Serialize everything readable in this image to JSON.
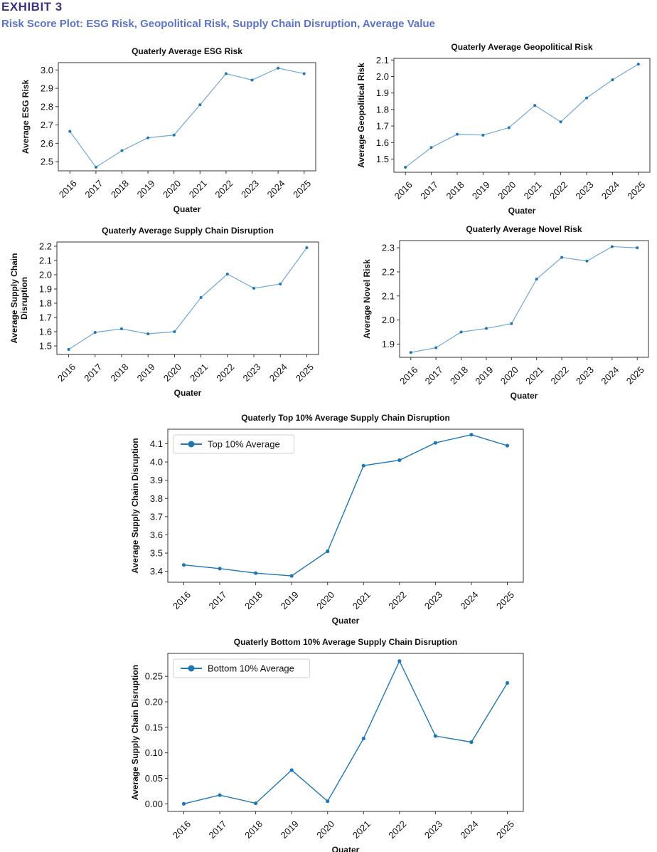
{
  "header": {
    "exhibit": "EXHIBIT 3",
    "subtitle": "Risk Score Plot: ESG Risk, Geopolitical Risk, Supply Chain Disruption, Average Value"
  },
  "colors": {
    "line": "#1f77b4",
    "line_light": "#6fa8d6"
  },
  "chart_data": [
    {
      "id": "esg",
      "type": "line",
      "title": "Quaterly Average ESG Risk",
      "xlabel": "Quater",
      "ylabel": [
        "Average ESG Risk"
      ],
      "categories": [
        "2016",
        "2017",
        "2018",
        "2019",
        "2020",
        "2021",
        "2022",
        "2023",
        "2024",
        "2025"
      ],
      "values": [
        2.665,
        2.47,
        2.56,
        2.63,
        2.645,
        2.81,
        2.98,
        2.945,
        3.01,
        2.98
      ],
      "ylim": [
        2.45,
        3.04
      ],
      "yticks": [
        2.5,
        2.6,
        2.7,
        2.8,
        2.9,
        3.0
      ],
      "ytick_labels": [
        "2.5",
        "2.6",
        "2.7",
        "2.8",
        "2.9",
        "3.0"
      ],
      "legend": null
    },
    {
      "id": "geo",
      "type": "line",
      "title": "Quaterly Average Geopolitical Risk",
      "xlabel": "Quater",
      "ylabel": [
        "Average Geopolitical Risk"
      ],
      "categories": [
        "2016",
        "2017",
        "2018",
        "2019",
        "2020",
        "2021",
        "2022",
        "2023",
        "2024",
        "2025"
      ],
      "values": [
        1.45,
        1.57,
        1.65,
        1.645,
        1.69,
        1.825,
        1.725,
        1.87,
        1.98,
        2.075
      ],
      "ylim": [
        1.42,
        2.11
      ],
      "yticks": [
        1.5,
        1.6,
        1.7,
        1.8,
        1.9,
        2.0,
        2.1
      ],
      "ytick_labels": [
        "1.5",
        "1.6",
        "1.7",
        "1.8",
        "1.9",
        "2.0",
        "2.1"
      ],
      "legend": null
    },
    {
      "id": "sc",
      "type": "line",
      "title": "Quaterly Average Supply Chain Disruption",
      "xlabel": "Quater",
      "ylabel": [
        "Average Supply Chain",
        "Disruption"
      ],
      "categories": [
        "2016",
        "2017",
        "2018",
        "2019",
        "2020",
        "2021",
        "2022",
        "2023",
        "2024",
        "2025"
      ],
      "values": [
        1.475,
        1.595,
        1.62,
        1.585,
        1.6,
        1.84,
        2.005,
        1.905,
        1.935,
        2.19
      ],
      "ylim": [
        1.44,
        2.23
      ],
      "yticks": [
        1.5,
        1.6,
        1.7,
        1.8,
        1.9,
        2.0,
        2.1,
        2.2
      ],
      "ytick_labels": [
        "1.5",
        "1.6",
        "1.7",
        "1.8",
        "1.9",
        "2.0",
        "2.1",
        "2.2"
      ],
      "legend": null
    },
    {
      "id": "novel",
      "type": "line",
      "title": "Quaterly Average Novel Risk",
      "xlabel": "Quater",
      "ylabel": [
        "Average Novel Risk"
      ],
      "categories": [
        "2016",
        "2017",
        "2018",
        "2019",
        "2020",
        "2021",
        "2022",
        "2023",
        "2024",
        "2025"
      ],
      "values": [
        1.865,
        1.885,
        1.95,
        1.965,
        1.985,
        2.17,
        2.26,
        2.245,
        2.305,
        2.3
      ],
      "ylim": [
        1.845,
        2.33
      ],
      "yticks": [
        1.9,
        2.0,
        2.1,
        2.2,
        2.3
      ],
      "ytick_labels": [
        "1.9",
        "2.0",
        "2.1",
        "2.2",
        "2.3"
      ],
      "legend": null
    },
    {
      "id": "top10",
      "type": "line",
      "title": "Quaterly Top 10% Average Supply Chain Disruption",
      "xlabel": "Quater",
      "ylabel": [
        "Average Supply Chain Disruption"
      ],
      "categories": [
        "2016",
        "2017",
        "2018",
        "2019",
        "2020",
        "2021",
        "2022",
        "2023",
        "2024",
        "2025"
      ],
      "values": [
        3.435,
        3.415,
        3.39,
        3.375,
        3.51,
        3.98,
        4.01,
        4.105,
        4.15,
        4.09
      ],
      "ylim": [
        3.34,
        4.18
      ],
      "yticks": [
        3.4,
        3.5,
        3.6,
        3.7,
        3.8,
        3.9,
        4.0,
        4.1
      ],
      "ytick_labels": [
        "3.4",
        "3.5",
        "3.6",
        "3.7",
        "3.8",
        "3.9",
        "4.0",
        "4.1"
      ],
      "legend": "Top 10% Average"
    },
    {
      "id": "bottom10",
      "type": "line",
      "title": "Quaterly Bottom 10% Average Supply Chain Disruption",
      "xlabel": "Quater",
      "ylabel": [
        "Average Supply Chain Disruption"
      ],
      "categories": [
        "2016",
        "2017",
        "2018",
        "2019",
        "2020",
        "2021",
        "2022",
        "2023",
        "2024",
        "2025"
      ],
      "values": [
        0.0,
        0.017,
        0.001,
        0.066,
        0.005,
        0.128,
        0.28,
        0.133,
        0.121,
        0.237
      ],
      "ylim": [
        -0.015,
        0.295
      ],
      "yticks": [
        0.0,
        0.05,
        0.1,
        0.15,
        0.2,
        0.25
      ],
      "ytick_labels": [
        "0.00",
        "0.05",
        "0.10",
        "0.15",
        "0.20",
        "0.25"
      ],
      "legend": "Bottom 10% Average"
    }
  ]
}
